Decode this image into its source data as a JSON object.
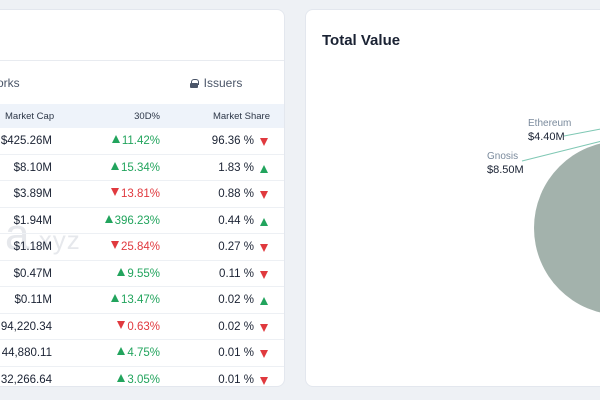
{
  "left_panel": {
    "tabs": {
      "networks": "orks",
      "issuers": "Issuers"
    },
    "columns": {
      "market_cap": "Market Cap",
      "change_30d": "30D%",
      "market_share": "Market Share"
    },
    "watermark": "a",
    "watermark_suffix": ".xyz",
    "rows": [
      {
        "market_cap": "$425.26M",
        "change_30d": "11.42%",
        "change_dir": "up",
        "market_share": "96.36 %",
        "share_dir": "down"
      },
      {
        "market_cap": "$8.10M",
        "change_30d": "15.34%",
        "change_dir": "up",
        "market_share": "1.83 %",
        "share_dir": "up"
      },
      {
        "market_cap": "$3.89M",
        "change_30d": "13.81%",
        "change_dir": "down",
        "market_share": "0.88 %",
        "share_dir": "down"
      },
      {
        "market_cap": "$1.94M",
        "change_30d": "396.23%",
        "change_dir": "up",
        "market_share": "0.44 %",
        "share_dir": "up"
      },
      {
        "market_cap": "$1.18M",
        "change_30d": "25.84%",
        "change_dir": "down",
        "market_share": "0.27 %",
        "share_dir": "down"
      },
      {
        "market_cap": "$0.47M",
        "change_30d": "9.55%",
        "change_dir": "up",
        "market_share": "0.11 %",
        "share_dir": "down"
      },
      {
        "market_cap": "$0.11M",
        "change_30d": "13.47%",
        "change_dir": "up",
        "market_share": "0.02 %",
        "share_dir": "up"
      },
      {
        "market_cap": "94,220.34",
        "change_30d": "0.63%",
        "change_dir": "down",
        "market_share": "0.02 %",
        "share_dir": "down"
      },
      {
        "market_cap": "44,880.11",
        "change_30d": "4.75%",
        "change_dir": "up",
        "market_share": "0.01 %",
        "share_dir": "down"
      },
      {
        "market_cap": "32,266.64",
        "change_30d": "3.05%",
        "change_dir": "up",
        "market_share": "0.01 %",
        "share_dir": "down"
      }
    ]
  },
  "right_panel": {
    "title": "Total Value"
  },
  "chart_data": {
    "type": "pie",
    "title": "Total Value",
    "slices": [
      {
        "name": "Ethereum",
        "value_label": "$4.40M"
      },
      {
        "name": "Gnosis",
        "value_label": "$8.50M"
      }
    ]
  },
  "colors": {
    "up": "#22a45d",
    "down": "#e0393e",
    "pie_main": "#a3b2ac",
    "leader_line": "#7fc8b4",
    "header_bg": "#eef3fa"
  }
}
